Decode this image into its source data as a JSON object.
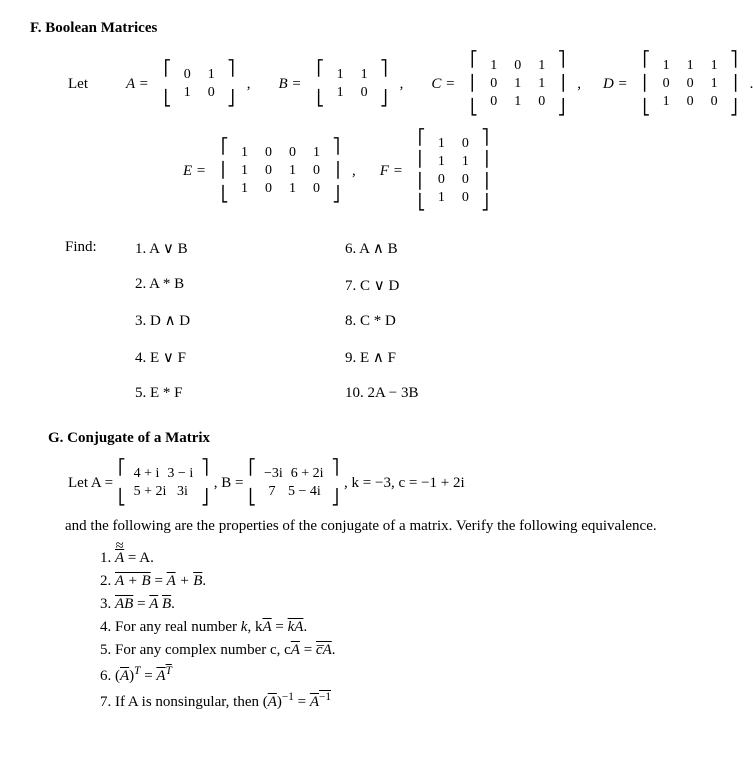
{
  "sectionF": {
    "title": "F. Boolean Matrices",
    "let": "Let",
    "matrices": {
      "A": {
        "label": "A =",
        "rows": [
          [
            "0",
            "1"
          ],
          [
            "1",
            "0"
          ]
        ]
      },
      "B": {
        "label": "B =",
        "rows": [
          [
            "1",
            "1"
          ],
          [
            "1",
            "0"
          ]
        ]
      },
      "C": {
        "label": "C =",
        "rows": [
          [
            "1",
            "0",
            "1"
          ],
          [
            "0",
            "1",
            "1"
          ],
          [
            "0",
            "1",
            "0"
          ]
        ]
      },
      "D": {
        "label": "D =",
        "rows": [
          [
            "1",
            "1",
            "1"
          ],
          [
            "0",
            "0",
            "1"
          ],
          [
            "1",
            "0",
            "0"
          ]
        ]
      },
      "E": {
        "label": "E =",
        "rows": [
          [
            "1",
            "0",
            "0",
            "1"
          ],
          [
            "1",
            "0",
            "1",
            "0"
          ],
          [
            "1",
            "0",
            "1",
            "0"
          ]
        ]
      },
      "F": {
        "label": "F =",
        "rows": [
          [
            "1",
            "0"
          ],
          [
            "1",
            "1"
          ],
          [
            "0",
            "0"
          ],
          [
            "1",
            "0"
          ]
        ]
      }
    },
    "find": "Find:",
    "items_left": [
      "1.  A ∨ B",
      "2.  A * B",
      "3.  D ∧ D",
      "4.  E ∨ F",
      "5.  E * F"
    ],
    "items_right": [
      "6.  A ∧ B",
      "7.  C ∨ D",
      "8.  C * D",
      "9.  E ∧ F",
      "10.  2A − 3B"
    ]
  },
  "sectionG": {
    "title": "G. Conjugate of a Matrix",
    "let": "Let  A =",
    "A": {
      "rows": [
        [
          "4 + i",
          "3 − i"
        ],
        [
          "5 + 2i",
          "3i"
        ]
      ]
    },
    "Blabel": ",   B =",
    "B": {
      "rows": [
        [
          "−3i",
          "6 + 2i"
        ],
        [
          "7",
          "5 − 4i"
        ]
      ]
    },
    "consts": ",  k = −3,   c = −1 + 2i",
    "para": "and the following are the properties of the conjugate of a matrix. Verify the following equivalence.",
    "props": {
      "p1a": "1.   ",
      "p1b": " = A.",
      "p2a": "2.   ",
      "p2b": " = ",
      "p2c": ".",
      "p3a": "3.   ",
      "p3b": " = ",
      "p3c": ".",
      "p4a": "4.   For any real number ",
      "p4b": "k",
      "p4c": ", k",
      "p4d": " = ",
      "p4e": ".",
      "p5a": "5.   For any complex number c, c",
      "p5b": " = ",
      "p5c": ".",
      "p6a": "6.   (",
      "p6b": ")",
      "p6c": " = ",
      "p7a": "7.   If A is nonsingular, then (",
      "p7b": ")",
      "p7c": " = "
    },
    "sym": {
      "A": "A",
      "B": "B",
      "AB": "AB",
      "ApB": "A + B",
      "ApBr": "A̅ + B̅",
      "ABr": "A̅ B̅",
      "kA": "kA",
      "cA": "c̅A",
      "T": "T",
      "AT": "A",
      "inv": "−1",
      "Ainv": "A",
      "Adbl": "A̅̅"
    }
  }
}
